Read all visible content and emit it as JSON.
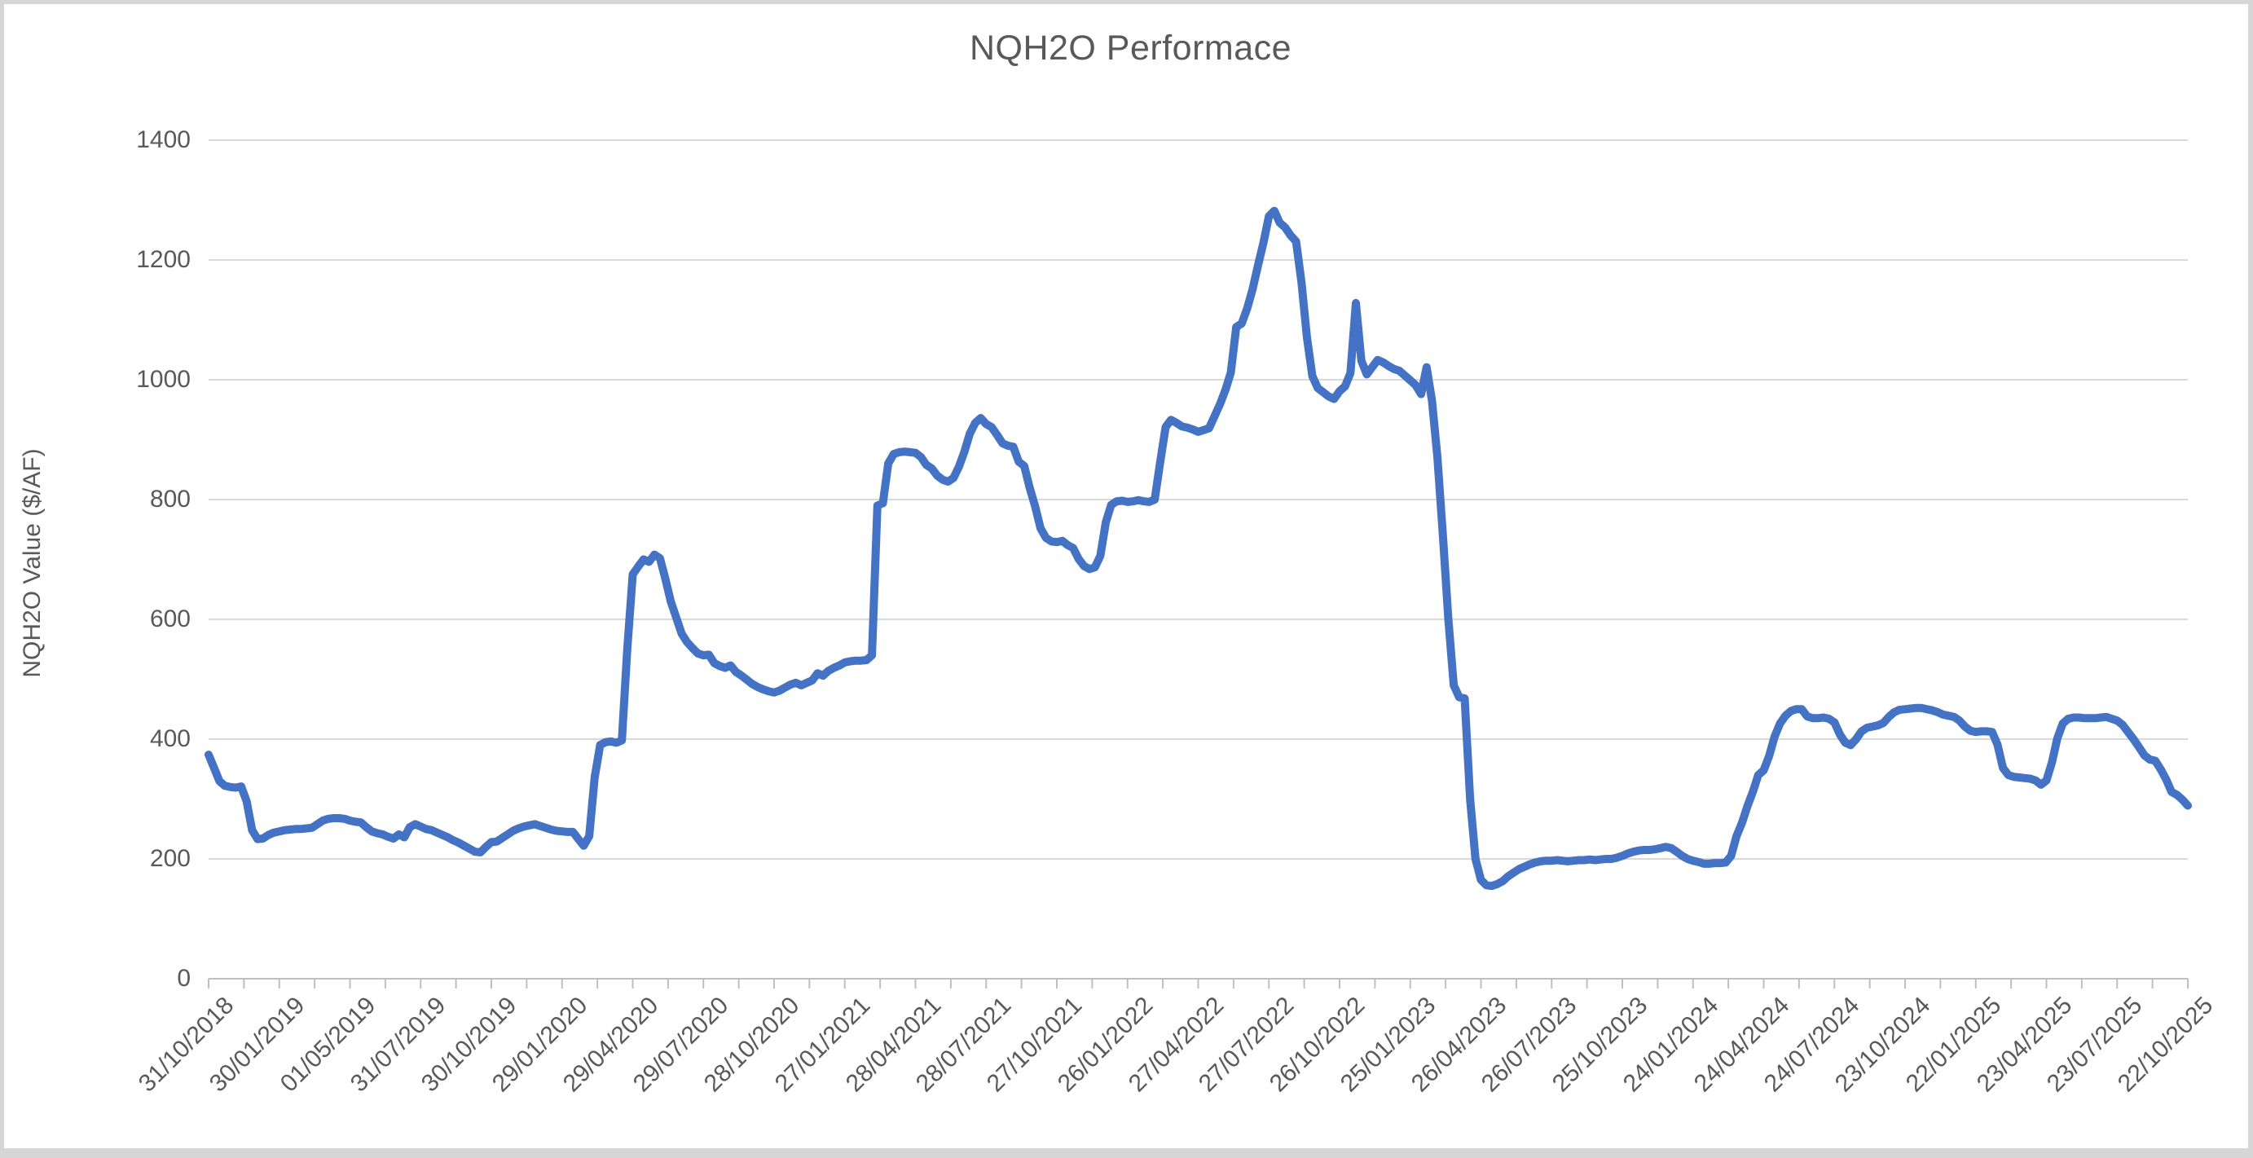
{
  "chart_data": {
    "type": "line",
    "title": "NQH2O Performace",
    "xlabel": "",
    "ylabel": "NQH2O Value ($/AF)",
    "ylim": [
      0,
      1400
    ],
    "ytick_interval": 200,
    "yticks": [
      0,
      200,
      400,
      600,
      800,
      1000,
      1200,
      1400
    ],
    "grid": true,
    "legend": false,
    "frequency": "weekly",
    "x_start_date": "31/10/2018",
    "x_end_date": "22/10/2025",
    "x_tick_labels": [
      "31/10/2018",
      "30/01/2019",
      "01/05/2019",
      "31/07/2019",
      "30/10/2019",
      "29/01/2020",
      "29/04/2020",
      "29/07/2020",
      "28/10/2020",
      "27/01/2021",
      "28/04/2021",
      "28/07/2021",
      "27/10/2021",
      "26/01/2022",
      "27/04/2022",
      "27/07/2022",
      "26/10/2022",
      "25/01/2023",
      "26/04/2023",
      "26/07/2023",
      "25/10/2023",
      "24/01/2024",
      "24/04/2024",
      "24/07/2024",
      "23/10/2024",
      "22/01/2025",
      "23/04/2025",
      "23/07/2025",
      "22/10/2025"
    ],
    "x_minor_ticks_per_label_interval": 2,
    "series": [
      {
        "name": "NQH2O Value",
        "color": "#4472C4",
        "values": [
          374,
          352,
          330,
          322,
          320,
          319,
          321,
          296,
          248,
          233,
          234,
          240,
          244,
          246,
          248,
          249,
          250,
          250,
          251,
          252,
          258,
          264,
          267,
          268,
          268,
          267,
          264,
          262,
          261,
          253,
          246,
          243,
          241,
          237,
          234,
          241,
          236,
          253,
          258,
          254,
          250,
          248,
          244,
          240,
          236,
          231,
          227,
          222,
          217,
          212,
          211,
          220,
          228,
          229,
          235,
          241,
          247,
          251,
          254,
          256,
          258,
          255,
          252,
          249,
          247,
          246,
          245,
          245,
          233,
          222,
          238,
          336,
          390,
          395,
          396,
          394,
          398,
          550,
          675,
          688,
          700,
          696,
          708,
          702,
          668,
          630,
          603,
          576,
          562,
          552,
          543,
          540,
          541,
          527,
          522,
          519,
          523,
          512,
          506,
          499,
          492,
          487,
          483,
          480,
          478,
          481,
          486,
          491,
          494,
          490,
          494,
          498,
          510,
          506,
          514,
          519,
          523,
          528,
          530,
          531,
          531,
          532,
          540,
          790,
          794,
          860,
          876,
          879,
          880,
          879,
          878,
          871,
          858,
          852,
          840,
          833,
          830,
          836,
          855,
          880,
          910,
          928,
          936,
          926,
          921,
          908,
          894,
          890,
          888,
          863,
          856,
          820,
          789,
          752,
          736,
          730,
          729,
          731,
          724,
          719,
          701,
          689,
          684,
          687,
          706,
          762,
          791,
          797,
          798,
          796,
          797,
          799,
          797,
          796,
          800,
          862,
          921,
          933,
          928,
          922,
          920,
          917,
          913,
          916,
          919,
          939,
          959,
          983,
          1012,
          1088,
          1094,
          1119,
          1151,
          1191,
          1229,
          1273,
          1282,
          1262,
          1254,
          1241,
          1231,
          1162,
          1070,
          1006,
          986,
          979,
          972,
          968,
          981,
          989,
          1011,
          1128,
          1032,
          1009,
          1021,
          1033,
          1029,
          1023,
          1018,
          1015,
          1007,
          999,
          991,
          976,
          1021,
          965,
          870,
          740,
          600,
          490,
          470,
          468,
          300,
          200,
          165,
          156,
          155,
          158,
          163,
          171,
          177,
          183,
          187,
          191,
          194,
          196,
          197,
          197,
          198,
          197,
          196,
          197,
          198,
          198,
          199,
          198,
          199,
          200,
          200,
          202,
          205,
          209,
          212,
          214,
          215,
          215,
          216,
          218,
          220,
          218,
          212,
          205,
          200,
          197,
          195,
          192,
          192,
          193,
          193,
          194,
          205,
          238,
          260,
          288,
          312,
          340,
          348,
          372,
          404,
          426,
          439,
          447,
          450,
          450,
          438,
          435,
          435,
          436,
          434,
          428,
          408,
          394,
          390,
          400,
          413,
          419,
          421,
          423,
          427,
          437,
          445,
          449,
          450,
          451,
          452,
          452,
          450,
          448,
          445,
          441,
          439,
          437,
          431,
          421,
          414,
          412,
          413,
          413,
          412,
          391,
          352,
          340,
          337,
          336,
          335,
          334,
          331,
          324,
          331,
          361,
          401,
          426,
          434,
          436,
          436,
          435,
          435,
          435,
          436,
          437,
          434,
          431,
          424,
          412,
          400,
          387,
          373,
          366,
          364,
          350,
          333,
          312,
          307,
          299,
          289
        ]
      }
    ]
  },
  "styles": {
    "series_color": "#4472C4",
    "gridline_color": "#D9D9D9",
    "axis_line_color": "#BFBFBF",
    "text_color": "#595959",
    "background_color": "#FFFFFF",
    "frame_color": "#D6D6D6"
  }
}
